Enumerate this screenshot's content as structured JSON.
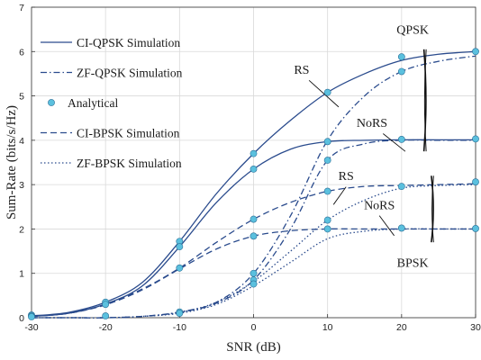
{
  "chart_data": {
    "type": "line",
    "xlabel": "SNR (dB)",
    "ylabel": "Sum-Rate (bits/s/Hz)",
    "xlim": [
      -30,
      30
    ],
    "ylim": [
      0,
      7
    ],
    "xticks": [
      "-30",
      "-20",
      "-10",
      "0",
      "10",
      "20",
      "30"
    ],
    "yticks": [
      "0",
      "1",
      "2",
      "3",
      "4",
      "5",
      "6",
      "7"
    ],
    "grid": true,
    "legend_position": "top-left",
    "line_color": "#2a4b8d",
    "marker_color": "#5bc0de",
    "x": [
      -30,
      -25,
      -20,
      -15,
      -10,
      -5,
      0,
      5,
      10,
      15,
      20,
      25,
      30
    ],
    "series": [
      {
        "name": "CI-QPSK Simulation",
        "style": "solid",
        "group": "RS-QPSK",
        "values": [
          0.04,
          0.12,
          0.35,
          0.8,
          1.72,
          2.8,
          3.7,
          4.45,
          5.08,
          5.5,
          5.8,
          5.94,
          6.0
        ]
      },
      {
        "name": "CI-QPSK Simulation",
        "style": "solid",
        "legend": false,
        "group": "NoRS-QPSK",
        "values": [
          0.03,
          0.1,
          0.31,
          0.72,
          1.6,
          2.6,
          3.35,
          3.8,
          3.97,
          4.0,
          4.01,
          4.01,
          4.01
        ]
      },
      {
        "name": "ZF-QPSK Simulation",
        "style": "dashdot",
        "group": "RS-QPSK",
        "values": [
          0.0,
          0.0,
          0.0,
          0.03,
          0.13,
          0.35,
          1.0,
          2.3,
          4.0,
          5.0,
          5.55,
          5.78,
          5.9
        ]
      },
      {
        "name": "ZF-QPSK Simulation",
        "style": "dashdot",
        "legend": false,
        "group": "NoRS-QPSK",
        "values": [
          0.0,
          0.0,
          0.0,
          0.03,
          0.12,
          0.33,
          0.85,
          2.0,
          3.55,
          3.92,
          4.0,
          4.0,
          4.0
        ]
      },
      {
        "name": "CI-BPSK Simulation",
        "style": "dashed",
        "group": "RS-BPSK",
        "values": [
          0.03,
          0.1,
          0.3,
          0.65,
          1.12,
          1.7,
          2.22,
          2.6,
          2.85,
          2.96,
          2.98,
          3.0,
          3.02
        ]
      },
      {
        "name": "CI-BPSK Simulation",
        "style": "dashed",
        "legend": false,
        "group": "NoRS-BPSK",
        "values": [
          0.03,
          0.1,
          0.29,
          0.63,
          1.1,
          1.55,
          1.84,
          1.96,
          2.0,
          2.0,
          2.0,
          2.0,
          2.0
        ]
      },
      {
        "name": "ZF-BPSK Simulation",
        "style": "dotted",
        "group": "RS-BPSK",
        "values": [
          0.0,
          0.0,
          0.0,
          0.03,
          0.12,
          0.35,
          0.82,
          1.5,
          2.2,
          2.65,
          2.92,
          2.98,
          3.0
        ]
      },
      {
        "name": "ZF-BPSK Simulation",
        "style": "dotted",
        "legend": false,
        "group": "NoRS-BPSK",
        "values": [
          0.0,
          0.0,
          0.0,
          0.03,
          0.1,
          0.3,
          0.72,
          1.25,
          1.78,
          1.95,
          2.0,
          2.0,
          2.0
        ]
      }
    ],
    "analytical": {
      "name": "Analytical",
      "points": [
        [
          -30,
          0.06
        ],
        [
          -30,
          0.04
        ],
        [
          -30,
          0.02
        ],
        [
          -20,
          0.35
        ],
        [
          -20,
          0.3
        ],
        [
          -20,
          0.04
        ],
        [
          -10,
          1.72
        ],
        [
          -10,
          1.6
        ],
        [
          -10,
          1.12
        ],
        [
          -10,
          0.13
        ],
        [
          -10,
          0.1
        ],
        [
          0,
          3.7
        ],
        [
          0,
          3.35
        ],
        [
          0,
          2.22
        ],
        [
          0,
          1.84
        ],
        [
          0,
          1.0
        ],
        [
          0,
          0.85
        ],
        [
          0,
          0.76
        ],
        [
          10,
          5.08
        ],
        [
          10,
          3.97
        ],
        [
          10,
          3.55
        ],
        [
          10,
          2.85
        ],
        [
          10,
          2.2
        ],
        [
          10,
          2.0
        ],
        [
          20,
          5.88
        ],
        [
          20,
          5.55
        ],
        [
          20,
          4.02
        ],
        [
          20,
          2.96
        ],
        [
          20,
          2.02
        ],
        [
          30,
          6.0
        ],
        [
          30,
          4.03
        ],
        [
          30,
          3.06
        ],
        [
          30,
          2.01
        ]
      ]
    },
    "annotations": [
      {
        "text": "QPSK",
        "x": 21.5,
        "y": 6.4
      },
      {
        "text": "RS",
        "x": 6.5,
        "y": 5.5
      },
      {
        "text": "NoRS",
        "x": 16.0,
        "y": 4.3
      },
      {
        "text": "RS",
        "x": 12.5,
        "y": 3.1
      },
      {
        "text": "NoRS",
        "x": 17.0,
        "y": 2.45
      },
      {
        "text": "BPSK",
        "x": 21.5,
        "y": 1.15
      }
    ]
  }
}
